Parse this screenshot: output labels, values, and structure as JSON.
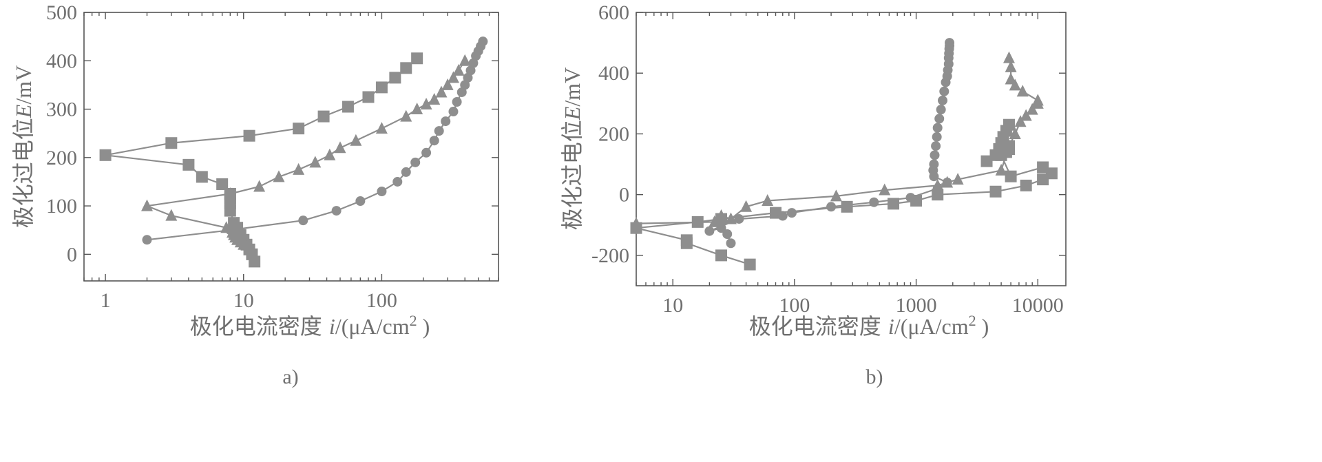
{
  "colors": {
    "marker": "#8e8e8e",
    "axis": "#555555",
    "text": "#6f6f6f",
    "background": "#ffffff"
  },
  "chart_data": [
    {
      "panel": "a)",
      "type": "line",
      "xlabel_text": "极化电流密度 ",
      "xlabel_var": "i",
      "xlabel_unit": "/(μA/cm",
      "xlabel_exp": "2",
      "xlabel_close": " )",
      "ylabel_text": "极化过电位",
      "ylabel_var": "E",
      "ylabel_unit": "/mV",
      "xscale": "log",
      "xlim": [
        0.7,
        700
      ],
      "ylim": [
        -55,
        500
      ],
      "xticks": [
        1,
        10,
        100
      ],
      "xtick_labels": [
        "1",
        "10",
        "100"
      ],
      "yticks": [
        0,
        100,
        200,
        300,
        400,
        500
      ],
      "ytick_labels": [
        "0",
        "100",
        "200",
        "300",
        "400",
        "500"
      ],
      "grid": false,
      "series": [
        {
          "marker": "square",
          "x": [
            12,
            11.5,
            11,
            10.5,
            10,
            9.5,
            9,
            8.5,
            8,
            8,
            8,
            8,
            8,
            7,
            5,
            4,
            1,
            3,
            11,
            25,
            38,
            57,
            80,
            100,
            125,
            150,
            180
          ],
          "y": [
            -15,
            0,
            10,
            20,
            30,
            40,
            55,
            65,
            90,
            105,
            115,
            125,
            125,
            145,
            160,
            185,
            205,
            230,
            245,
            260,
            285,
            305,
            325,
            345,
            365,
            385,
            405
          ]
        },
        {
          "marker": "triangle",
          "x": [
            11,
            10,
            9.5,
            9,
            8.7,
            8.5,
            8.3,
            7.5,
            3,
            2,
            8,
            13,
            18,
            25,
            33,
            42,
            50,
            65,
            100,
            150,
            180,
            210,
            240,
            270,
            300,
            330,
            360,
            400
          ],
          "y": [
            15,
            20,
            25,
            30,
            35,
            40,
            45,
            55,
            80,
            100,
            125,
            140,
            160,
            175,
            190,
            205,
            220,
            235,
            260,
            285,
            300,
            310,
            320,
            335,
            350,
            365,
            380,
            400
          ]
        },
        {
          "marker": "circle",
          "x": [
            2,
            8,
            27,
            47,
            70,
            100,
            130,
            150,
            175,
            210,
            240,
            260,
            290,
            330,
            350,
            380,
            400,
            420,
            440,
            460,
            480,
            500,
            520,
            540
          ],
          "y": [
            30,
            50,
            70,
            90,
            110,
            130,
            150,
            170,
            190,
            210,
            235,
            255,
            275,
            295,
            315,
            335,
            350,
            365,
            380,
            395,
            410,
            420,
            430,
            440
          ]
        }
      ]
    },
    {
      "panel": "b)",
      "type": "line",
      "xlabel_text": "极化电流密度 ",
      "xlabel_var": "i",
      "xlabel_unit": "/(μA/cm",
      "xlabel_exp": "2",
      "xlabel_close": " )",
      "ylabel_text": "极化过电位",
      "ylabel_var": "E",
      "ylabel_unit": "/mV",
      "xscale": "log",
      "xlim": [
        5,
        17000
      ],
      "ylim": [
        -300,
        600
      ],
      "xticks": [
        10,
        100,
        1000,
        10000
      ],
      "xtick_labels": [
        "10",
        "100",
        "1000",
        "10000"
      ],
      "yticks": [
        -200,
        0,
        200,
        400,
        600
      ],
      "ytick_labels": [
        "-200",
        "0",
        "200",
        "400",
        "600"
      ],
      "grid": false,
      "series": [
        {
          "marker": "square",
          "x": [
            43,
            25,
            13,
            13,
            5,
            16,
            25,
            70,
            270,
            650,
            1000,
            1500,
            4500,
            8000,
            11000,
            13000,
            11000,
            6000,
            5000,
            5500,
            5800,
            5800,
            3800,
            4500,
            4800,
            5000,
            5200,
            5500,
            5800
          ],
          "y": [
            -230,
            -200,
            -160,
            -150,
            -110,
            -90,
            -80,
            -60,
            -40,
            -30,
            -20,
            0,
            10,
            30,
            50,
            70,
            90,
            60,
            130,
            140,
            150,
            160,
            110,
            130,
            150,
            170,
            190,
            210,
            230
          ]
        },
        {
          "marker": "triangle",
          "x": [
            5,
            22,
            25,
            30,
            40,
            60,
            220,
            550,
            1500,
            1800,
            2200,
            5000,
            5800,
            6500,
            7200,
            8000,
            9000,
            10000,
            10000,
            7500,
            6500,
            6000,
            6000,
            5800
          ],
          "y": [
            -95,
            -90,
            -70,
            -80,
            -40,
            -20,
            -5,
            15,
            30,
            40,
            50,
            80,
            160,
            200,
            240,
            260,
            280,
            300,
            310,
            340,
            360,
            380,
            420,
            450
          ]
        },
        {
          "marker": "circle",
          "x": [
            30,
            28,
            25,
            20,
            35,
            80,
            95,
            200,
            450,
            900,
            1500,
            1800,
            1400,
            1380,
            1400,
            1420,
            1450,
            1480,
            1500,
            1550,
            1600,
            1650,
            1700,
            1750,
            1800,
            1820,
            1850,
            1850,
            1860,
            1870,
            1880,
            1880
          ],
          "y": [
            -160,
            -130,
            -110,
            -120,
            -80,
            -70,
            -60,
            -40,
            -25,
            -10,
            20,
            40,
            60,
            80,
            100,
            130,
            160,
            190,
            220,
            250,
            280,
            310,
            340,
            370,
            390,
            410,
            430,
            450,
            465,
            480,
            490,
            500
          ]
        }
      ]
    }
  ]
}
